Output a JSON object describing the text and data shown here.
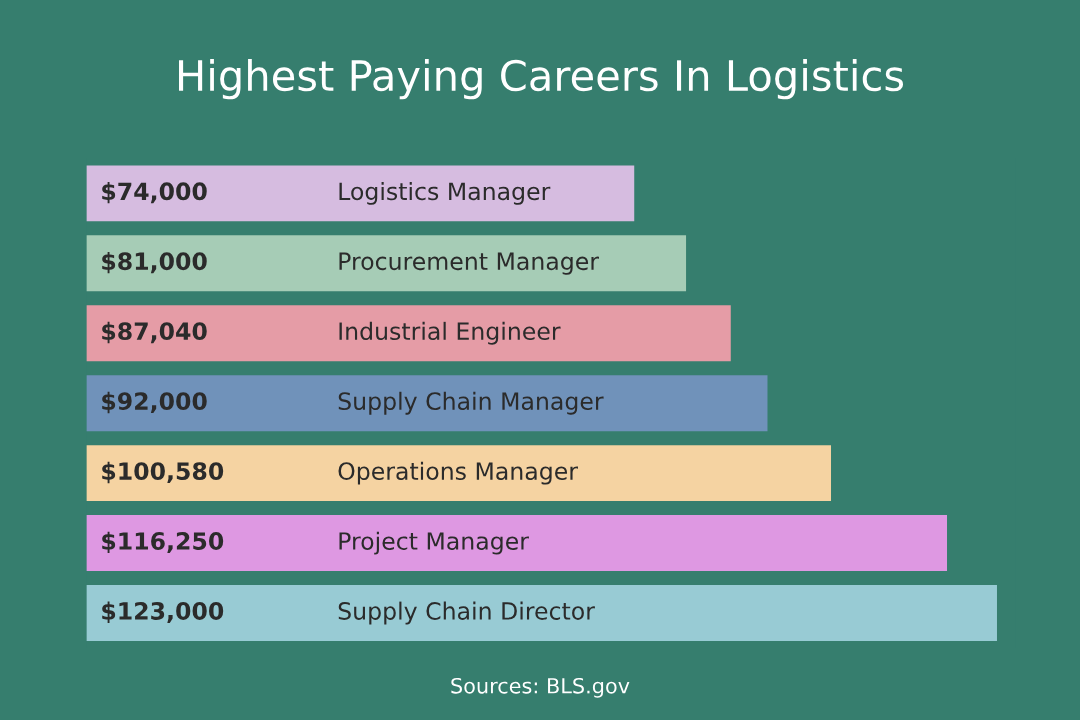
{
  "chart_data": {
    "type": "bar",
    "orientation": "horizontal",
    "title": "Highest Paying Careers In Logistics",
    "categories": [
      "Logistics Manager",
      "Procurement Manager",
      "Industrial Engineer",
      "Supply Chain Manager",
      "Operations Manager",
      "Project Manager",
      "Supply Chain Director"
    ],
    "values": [
      74000,
      81000,
      87040,
      92000,
      100580,
      116250,
      123000
    ],
    "value_labels": [
      "$74,000",
      "$81,000",
      "$87,040",
      "$92,000",
      "$100,580",
      "$116,250",
      "$123,000"
    ],
    "colors": [
      "#d6bce0",
      "#a6ccb6",
      "#e59ca6",
      "#7092ba",
      "#f5d3a2",
      "#de98e2",
      "#98cbd4"
    ],
    "annotations": [
      "Sources: BLS.gov"
    ]
  }
}
